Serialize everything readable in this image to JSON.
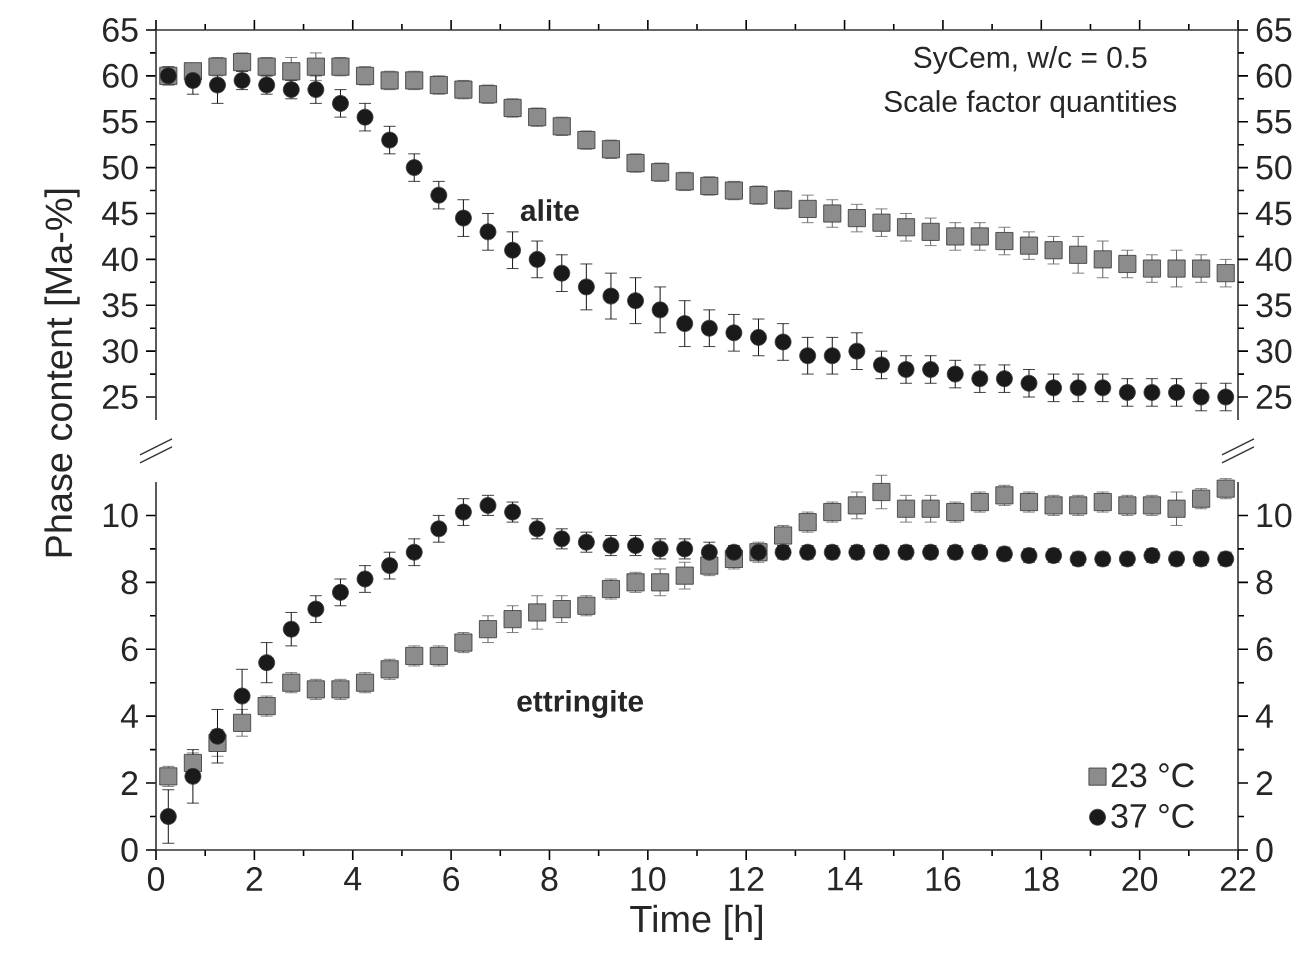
{
  "chart_data": [
    {
      "type": "scatter",
      "ylabel": "Phase content [Ma-%]",
      "annotations": [
        "SyCem, w/c = 0.5",
        "Scale factor quantities",
        "alite"
      ],
      "x": [
        0.25,
        0.75,
        1.25,
        1.75,
        2.25,
        2.75,
        3.25,
        3.75,
        4.25,
        4.75,
        5.25,
        5.75,
        6.25,
        6.75,
        7.25,
        7.75,
        8.25,
        8.75,
        9.25,
        9.75,
        10.25,
        10.75,
        11.25,
        11.75,
        12.25,
        12.75,
        13.25,
        13.75,
        14.25,
        14.75,
        15.25,
        15.75,
        16.25,
        16.75,
        17.25,
        17.75,
        18.25,
        18.75,
        19.25,
        19.75,
        20.25,
        20.75,
        21.25,
        21.75
      ],
      "xlim": [
        0,
        22
      ],
      "xticks": [
        0,
        2,
        4,
        6,
        8,
        10,
        12,
        14,
        16,
        18,
        20,
        22
      ],
      "ylim": [
        22.5,
        65
      ],
      "yticks": [
        25,
        30,
        35,
        40,
        45,
        50,
        55,
        60,
        65
      ],
      "y2lim": [
        22.5,
        65
      ],
      "y2ticks": [
        25,
        30,
        35,
        40,
        45,
        50,
        55,
        60,
        65
      ],
      "tick_labels": "y",
      "grid": false,
      "legend": false,
      "series": [
        {
          "color": "#8c8c8c",
          "marker": "square",
          "values": [
            60,
            60.5,
            61,
            61.5,
            61,
            60.5,
            61,
            61,
            60,
            59.5,
            59.5,
            59,
            58.5,
            58,
            56.5,
            55.5,
            54.5,
            53,
            52,
            50.5,
            49.5,
            48.5,
            48,
            47.5,
            47,
            46.5,
            45.5,
            45,
            44.5,
            44,
            43.5,
            43,
            42.5,
            42.5,
            42,
            41.5,
            41,
            40.5,
            40,
            39.5,
            39,
            39,
            39,
            38.5
          ],
          "errors": [
            0.8,
            0.8,
            1,
            1,
            1,
            1.5,
            1.5,
            1,
            1,
            1,
            1,
            1,
            1,
            1,
            1,
            1,
            1,
            1,
            1,
            1,
            1,
            1,
            1,
            1,
            1,
            1,
            1.5,
            1.5,
            1.5,
            1.5,
            1.5,
            1.5,
            1.5,
            1.5,
            1.5,
            1.5,
            1.5,
            2,
            2,
            1.5,
            1.5,
            2,
            1.5,
            1.5
          ]
        },
        {
          "color": "#1a1a1a",
          "marker": "circle",
          "values": [
            60,
            59.5,
            59,
            59.5,
            59,
            58.5,
            58.5,
            57,
            55.5,
            53,
            50,
            47,
            44.5,
            43,
            41,
            40,
            38.5,
            37,
            36,
            35.5,
            34.5,
            33,
            32.5,
            32,
            31.5,
            31,
            29.5,
            29.5,
            30,
            28.5,
            28,
            28,
            27.5,
            27,
            27,
            26.5,
            26,
            26,
            26,
            25.5,
            25.5,
            25.5,
            25,
            25
          ],
          "errors": [
            1,
            1.5,
            2,
            1,
            1,
            1,
            1.5,
            1.5,
            1.5,
            1.5,
            1.5,
            1.5,
            2,
            2,
            2,
            2,
            2,
            2.5,
            2.5,
            2.5,
            2.5,
            2.5,
            2,
            2,
            2,
            2,
            2,
            2,
            2,
            1.5,
            1.5,
            1.5,
            1.5,
            1.5,
            1.5,
            1.5,
            1.5,
            1.5,
            1.5,
            1.5,
            1.5,
            1.5,
            1.5,
            1.5
          ]
        }
      ]
    },
    {
      "type": "scatter",
      "xlabel": "Time [h]",
      "annotations": [
        "ettringite"
      ],
      "x": [
        0.25,
        0.75,
        1.25,
        1.75,
        2.25,
        2.75,
        3.25,
        3.75,
        4.25,
        4.75,
        5.25,
        5.75,
        6.25,
        6.75,
        7.25,
        7.75,
        8.25,
        8.75,
        9.25,
        9.75,
        10.25,
        10.75,
        11.25,
        11.75,
        12.25,
        12.75,
        13.25,
        13.75,
        14.25,
        14.75,
        15.25,
        15.75,
        16.25,
        16.75,
        17.25,
        17.75,
        18.25,
        18.75,
        19.25,
        19.75,
        20.25,
        20.75,
        21.25,
        21.75
      ],
      "xlim": [
        0,
        22
      ],
      "xticks": [
        0,
        2,
        4,
        6,
        8,
        10,
        12,
        14,
        16,
        18,
        20,
        22
      ],
      "ylim": [
        0,
        11
      ],
      "yticks": [
        0,
        2,
        4,
        6,
        8,
        10
      ],
      "y2lim": [
        0,
        11
      ],
      "y2ticks": [
        0,
        2,
        4,
        6,
        8,
        10
      ],
      "grid": false,
      "legend": "bottom right",
      "series": [
        {
          "name": "23 °C",
          "color": "#8c8c8c",
          "marker": "square",
          "values": [
            2.2,
            2.6,
            3.2,
            3.8,
            4.3,
            5,
            4.8,
            4.8,
            5,
            5.4,
            5.8,
            5.8,
            6.2,
            6.6,
            6.9,
            7.1,
            7.2,
            7.3,
            7.8,
            8,
            8,
            8.2,
            8.5,
            8.7,
            8.9,
            9.4,
            9.8,
            10.1,
            10.3,
            10.7,
            10.2,
            10.2,
            10.1,
            10.4,
            10.6,
            10.4,
            10.3,
            10.3,
            10.4,
            10.3,
            10.3,
            10.2,
            10.5,
            10.8
          ],
          "errors": [
            0.3,
            0.3,
            0.4,
            0.4,
            0.3,
            0.3,
            0.3,
            0.3,
            0.3,
            0.3,
            0.3,
            0.3,
            0.3,
            0.4,
            0.4,
            0.5,
            0.4,
            0.3,
            0.3,
            0.3,
            0.4,
            0.4,
            0.3,
            0.3,
            0.3,
            0.3,
            0.3,
            0.3,
            0.4,
            0.5,
            0.4,
            0.4,
            0.3,
            0.3,
            0.3,
            0.3,
            0.3,
            0.3,
            0.3,
            0.3,
            0.3,
            0.5,
            0.3,
            0.3
          ]
        },
        {
          "name": "37 °C",
          "color": "#1a1a1a",
          "marker": "circle",
          "values": [
            1,
            2.2,
            3.4,
            4.6,
            5.6,
            6.6,
            7.2,
            7.7,
            8.1,
            8.5,
            8.9,
            9.6,
            10.1,
            10.3,
            10.1,
            9.6,
            9.3,
            9.2,
            9.1,
            9.1,
            9,
            9,
            8.9,
            8.9,
            8.9,
            8.9,
            8.9,
            8.9,
            8.9,
            8.9,
            8.9,
            8.9,
            8.9,
            8.9,
            8.85,
            8.8,
            8.8,
            8.7,
            8.7,
            8.7,
            8.8,
            8.7,
            8.7,
            8.7
          ],
          "errors": [
            0.8,
            0.8,
            0.8,
            0.8,
            0.6,
            0.5,
            0.4,
            0.4,
            0.4,
            0.4,
            0.4,
            0.4,
            0.4,
            0.3,
            0.3,
            0.3,
            0.3,
            0.3,
            0.3,
            0.3,
            0.3,
            0.3,
            0.3,
            0.2,
            0.2,
            0.2,
            0.2,
            0.2,
            0.2,
            0.2,
            0.2,
            0.2,
            0.2,
            0.2,
            0.2,
            0.2,
            0.2,
            0.2,
            0.2,
            0.2,
            0.2,
            0.2,
            0.2,
            0.2
          ]
        }
      ]
    }
  ]
}
